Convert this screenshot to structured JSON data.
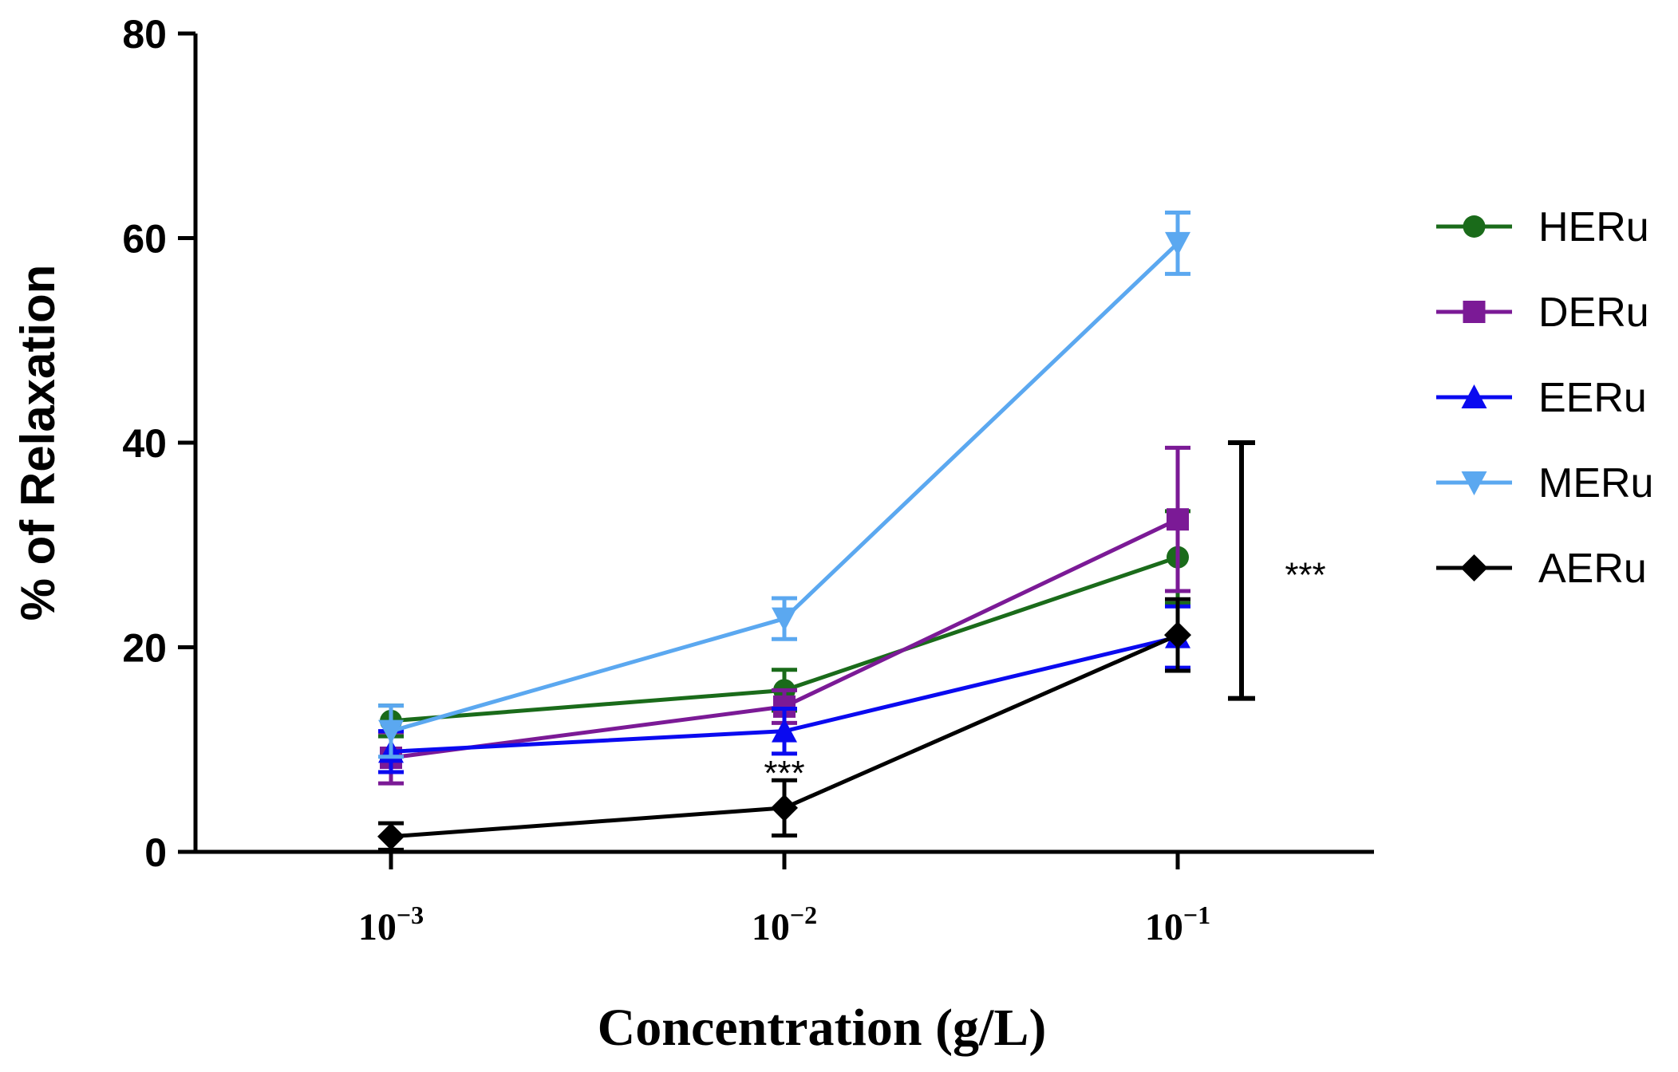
{
  "chart_data": {
    "type": "line",
    "title": "",
    "xlabel": "Concentration (g/L)",
    "ylabel": "% of Relaxation",
    "x_scale": "log",
    "x": [
      0.001,
      0.01,
      0.1
    ],
    "x_tick_labels": [
      {
        "base": "10",
        "exp": "−3"
      },
      {
        "base": "10",
        "exp": "−2"
      },
      {
        "base": "10",
        "exp": "−1"
      }
    ],
    "ylim": [
      0,
      80
    ],
    "y_ticks": [
      0,
      20,
      40,
      60,
      80
    ],
    "legend_position": "right",
    "series": [
      {
        "name": "HERu",
        "color": "#1a6b1a",
        "marker": "circle",
        "values": [
          12.8,
          15.8,
          28.8
        ],
        "errors": [
          1.5,
          2.0,
          4.5
        ]
      },
      {
        "name": "DERu",
        "color": "#7b1a96",
        "marker": "square",
        "values": [
          9.2,
          14.2,
          32.5
        ],
        "errors": [
          2.5,
          1.6,
          7.0
        ]
      },
      {
        "name": "EERu",
        "color": "#0a0af0",
        "marker": "triangle-up",
        "values": [
          9.8,
          11.8,
          21.0
        ],
        "errors": [
          2.0,
          2.2,
          3.0
        ]
      },
      {
        "name": "MERu",
        "color": "#5ba8f0",
        "marker": "triangle-down",
        "values": [
          11.8,
          22.8,
          59.5
        ],
        "errors": [
          2.5,
          2.0,
          3.0
        ]
      },
      {
        "name": "AERu",
        "color": "#000000",
        "marker": "diamond",
        "values": [
          1.5,
          4.3,
          21.2
        ],
        "errors": [
          1.3,
          2.7,
          3.5
        ]
      }
    ],
    "annotations": [
      {
        "text": "***",
        "x": 0.01,
        "y": 7.0
      },
      {
        "text": "***",
        "bracket_y_range": [
          15,
          40
        ]
      }
    ]
  }
}
